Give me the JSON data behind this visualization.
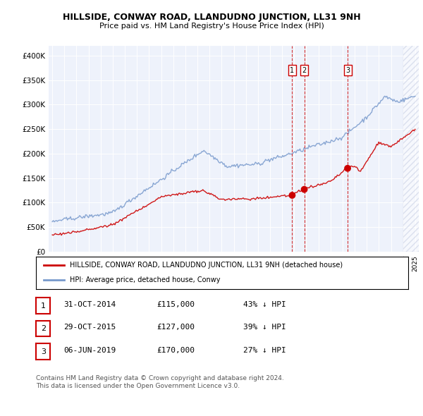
{
  "title": "HILLSIDE, CONWAY ROAD, LLANDUDNO JUNCTION, LL31 9NH",
  "subtitle": "Price paid vs. HM Land Registry's House Price Index (HPI)",
  "ylim": [
    0,
    420000
  ],
  "yticks": [
    0,
    50000,
    100000,
    150000,
    200000,
    250000,
    300000,
    350000,
    400000
  ],
  "ytick_labels": [
    "£0",
    "£50K",
    "£100K",
    "£150K",
    "£200K",
    "£250K",
    "£300K",
    "£350K",
    "£400K"
  ],
  "sale_years": [
    2014.833,
    2015.833,
    2019.417
  ],
  "sale_prices": [
    115000,
    127000,
    170000
  ],
  "sale_labels": [
    "1",
    "2",
    "3"
  ],
  "legend_red": "HILLSIDE, CONWAY ROAD, LLANDUDNO JUNCTION, LL31 9NH (detached house)",
  "legend_blue": "HPI: Average price, detached house, Conwy",
  "table_entries": [
    {
      "num": "1",
      "date": "31-OCT-2014",
      "price": "£115,000",
      "pct": "43% ↓ HPI"
    },
    {
      "num": "2",
      "date": "29-OCT-2015",
      "price": "£127,000",
      "pct": "39% ↓ HPI"
    },
    {
      "num": "3",
      "date": "06-JUN-2019",
      "price": "£170,000",
      "pct": "27% ↓ HPI"
    }
  ],
  "footer": "Contains HM Land Registry data © Crown copyright and database right 2024.\nThis data is licensed under the Open Government Licence v3.0.",
  "red_color": "#cc0000",
  "blue_color": "#7799cc",
  "vline_color": "#cc0000",
  "bg_color": "#eef2fb",
  "hatch_color": "#d0d8ef",
  "xlim_start": 1994.7,
  "xlim_end": 2025.3,
  "hatch_start": 2024.0
}
